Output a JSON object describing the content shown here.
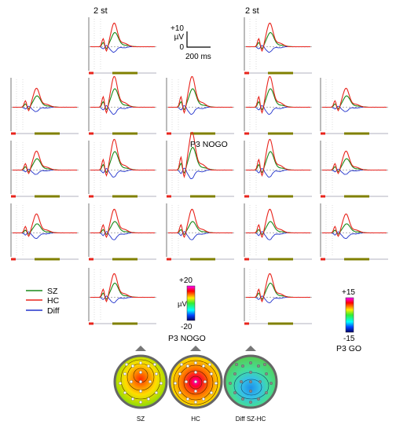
{
  "electrode_headers": [
    "2 st",
    "2 st"
  ],
  "scale_bar": {
    "amplitude_label": "+10",
    "unit": "µV",
    "zero": "0",
    "time_label": "200 ms"
  },
  "legend": [
    {
      "label": "SZ",
      "color": "#1a8a1a"
    },
    {
      "label": "HC",
      "color": "#e8241c"
    },
    {
      "label": "Diff",
      "color": "#2233cc"
    }
  ],
  "condition_label": "P3 NOGO",
  "colorbars": [
    {
      "name": "p3-nogo-colorbar",
      "max": "+20",
      "min": "-20",
      "unit": "µV",
      "title": "P3 NOGO"
    },
    {
      "name": "p3-go-colorbar",
      "max": "+15",
      "min": "-15",
      "unit": "",
      "title": "P3 GO"
    }
  ],
  "topomaps": [
    {
      "name": "topo-sz",
      "label": "SZ"
    },
    {
      "name": "topo-hc",
      "label": "HC"
    },
    {
      "name": "topo-diff",
      "label": "Diff SZ-HC"
    }
  ],
  "chart_data": {
    "type": "line",
    "description_units": "µV vs ms",
    "series": [
      {
        "name": "SZ",
        "color": "#1a8a1a"
      },
      {
        "name": "HC",
        "color": "#e8241c"
      },
      {
        "name": "Diff",
        "color": "#2233cc"
      }
    ],
    "panel_grid": {
      "row1": [
        2,
        4
      ],
      "row2": [
        1,
        2,
        3,
        4,
        5
      ],
      "row3": [
        1,
        2,
        3,
        4,
        5
      ],
      "row4": [
        1,
        2,
        3,
        4,
        5
      ],
      "row5": [
        2,
        4
      ]
    },
    "amplitude_scale_uV": [
      0,
      10
    ],
    "time_scale_ms": 200
  }
}
